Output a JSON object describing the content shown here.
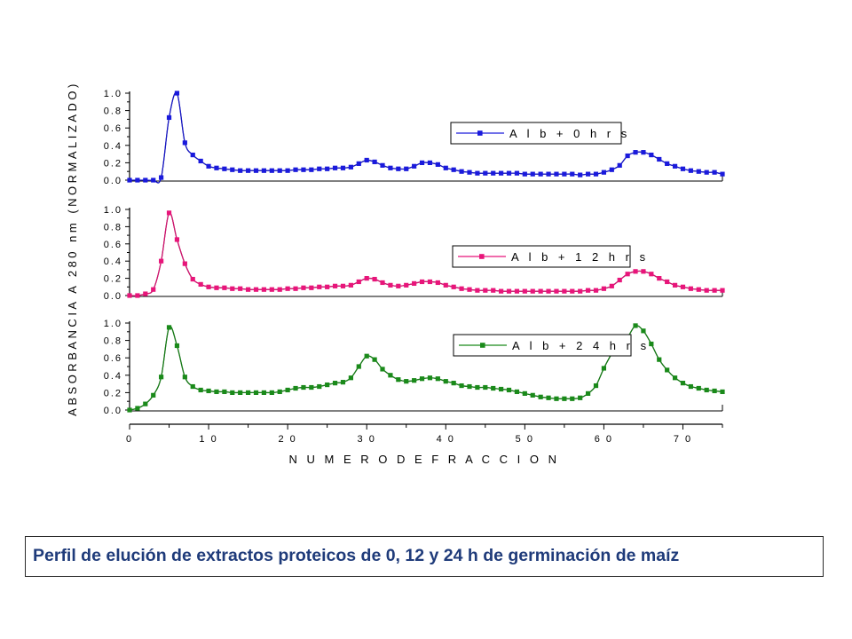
{
  "caption": "Perfil de elución de extractos proteicos de 0, 12 y 24 h de germinación de maíz",
  "chart_data": {
    "type": "line",
    "xlabel": "N U M E R O   D E   F R A C C I O N",
    "ylabel": "ABSORBANCIA A 280 nm  (NORMALIZADO)",
    "xlim": [
      0,
      75
    ],
    "ylim": [
      0,
      1.0
    ],
    "x_ticks": [
      "0",
      "1 0",
      "2 0",
      "3 0",
      "4 0",
      "5 0",
      "6 0",
      "7 0"
    ],
    "y_ticks": [
      "0.0",
      "0.2",
      "0.4",
      "0.6",
      "0.8",
      "1.0"
    ],
    "series": [
      {
        "name": "A l b  +  0  h r s",
        "color": "#1a1adc",
        "x": [
          0,
          1,
          2,
          3,
          4,
          5,
          6,
          7,
          8,
          9,
          10,
          11,
          12,
          13,
          14,
          15,
          16,
          17,
          18,
          19,
          20,
          21,
          22,
          23,
          24,
          25,
          26,
          27,
          28,
          29,
          30,
          31,
          32,
          33,
          34,
          35,
          36,
          37,
          38,
          39,
          40,
          41,
          42,
          43,
          44,
          45,
          46,
          47,
          48,
          49,
          50,
          51,
          52,
          53,
          54,
          55,
          56,
          57,
          58,
          59,
          60,
          61,
          62,
          63,
          64,
          65,
          66,
          67,
          68,
          69,
          70,
          71,
          72,
          73,
          74,
          75
        ],
        "y": [
          0.0,
          0.0,
          0.0,
          0.0,
          0.03,
          0.72,
          1.0,
          0.43,
          0.29,
          0.22,
          0.16,
          0.14,
          0.13,
          0.12,
          0.11,
          0.11,
          0.11,
          0.11,
          0.11,
          0.11,
          0.11,
          0.12,
          0.12,
          0.12,
          0.13,
          0.13,
          0.14,
          0.14,
          0.15,
          0.19,
          0.23,
          0.21,
          0.17,
          0.14,
          0.13,
          0.13,
          0.16,
          0.2,
          0.2,
          0.18,
          0.14,
          0.12,
          0.1,
          0.09,
          0.08,
          0.08,
          0.08,
          0.08,
          0.08,
          0.08,
          0.07,
          0.07,
          0.07,
          0.07,
          0.07,
          0.07,
          0.07,
          0.06,
          0.07,
          0.07,
          0.09,
          0.12,
          0.17,
          0.28,
          0.32,
          0.32,
          0.29,
          0.24,
          0.19,
          0.16,
          0.13,
          0.11,
          0.1,
          0.09,
          0.09,
          0.07
        ]
      },
      {
        "name": "A l b  +  1 2  h r s",
        "color": "#e8157a",
        "x": [
          0,
          1,
          2,
          3,
          4,
          5,
          6,
          7,
          8,
          9,
          10,
          11,
          12,
          13,
          14,
          15,
          16,
          17,
          18,
          19,
          20,
          21,
          22,
          23,
          24,
          25,
          26,
          27,
          28,
          29,
          30,
          31,
          32,
          33,
          34,
          35,
          36,
          37,
          38,
          39,
          40,
          41,
          42,
          43,
          44,
          45,
          46,
          47,
          48,
          49,
          50,
          51,
          52,
          53,
          54,
          55,
          56,
          57,
          58,
          59,
          60,
          61,
          62,
          63,
          64,
          65,
          66,
          67,
          68,
          69,
          70,
          71,
          72,
          73,
          74,
          75
        ],
        "y": [
          0.0,
          0.0,
          0.02,
          0.07,
          0.4,
          0.96,
          0.65,
          0.37,
          0.19,
          0.13,
          0.1,
          0.09,
          0.09,
          0.08,
          0.08,
          0.07,
          0.07,
          0.07,
          0.07,
          0.07,
          0.08,
          0.08,
          0.09,
          0.09,
          0.1,
          0.1,
          0.11,
          0.11,
          0.12,
          0.16,
          0.2,
          0.19,
          0.15,
          0.12,
          0.11,
          0.12,
          0.14,
          0.16,
          0.16,
          0.15,
          0.12,
          0.1,
          0.08,
          0.07,
          0.06,
          0.06,
          0.06,
          0.05,
          0.05,
          0.05,
          0.05,
          0.05,
          0.05,
          0.05,
          0.05,
          0.05,
          0.05,
          0.05,
          0.06,
          0.06,
          0.08,
          0.11,
          0.18,
          0.25,
          0.28,
          0.28,
          0.25,
          0.2,
          0.16,
          0.12,
          0.1,
          0.08,
          0.07,
          0.06,
          0.06,
          0.06
        ]
      },
      {
        "name": "A l b  +  2 4  h r s",
        "color": "#1a8a1a",
        "x": [
          0,
          1,
          2,
          3,
          4,
          5,
          6,
          7,
          8,
          9,
          10,
          11,
          12,
          13,
          14,
          15,
          16,
          17,
          18,
          19,
          20,
          21,
          22,
          23,
          24,
          25,
          26,
          27,
          28,
          29,
          30,
          31,
          32,
          33,
          34,
          35,
          36,
          37,
          38,
          39,
          40,
          41,
          42,
          43,
          44,
          45,
          46,
          47,
          48,
          49,
          50,
          51,
          52,
          53,
          54,
          55,
          56,
          57,
          58,
          59,
          60,
          61,
          62,
          63,
          64,
          65,
          66,
          67,
          68,
          69,
          70,
          71,
          72,
          73,
          74,
          75
        ],
        "y": [
          0.0,
          0.02,
          0.07,
          0.17,
          0.38,
          0.95,
          0.74,
          0.38,
          0.27,
          0.23,
          0.22,
          0.21,
          0.21,
          0.2,
          0.2,
          0.2,
          0.2,
          0.2,
          0.2,
          0.21,
          0.23,
          0.25,
          0.26,
          0.26,
          0.27,
          0.29,
          0.31,
          0.32,
          0.37,
          0.5,
          0.62,
          0.58,
          0.47,
          0.4,
          0.35,
          0.33,
          0.34,
          0.36,
          0.37,
          0.36,
          0.33,
          0.31,
          0.28,
          0.27,
          0.26,
          0.26,
          0.25,
          0.24,
          0.23,
          0.21,
          0.19,
          0.17,
          0.15,
          0.14,
          0.13,
          0.13,
          0.13,
          0.14,
          0.19,
          0.28,
          0.48,
          0.65,
          0.8,
          0.84,
          0.97,
          0.91,
          0.76,
          0.58,
          0.46,
          0.37,
          0.31,
          0.27,
          0.25,
          0.23,
          0.22,
          0.21
        ]
      }
    ]
  }
}
